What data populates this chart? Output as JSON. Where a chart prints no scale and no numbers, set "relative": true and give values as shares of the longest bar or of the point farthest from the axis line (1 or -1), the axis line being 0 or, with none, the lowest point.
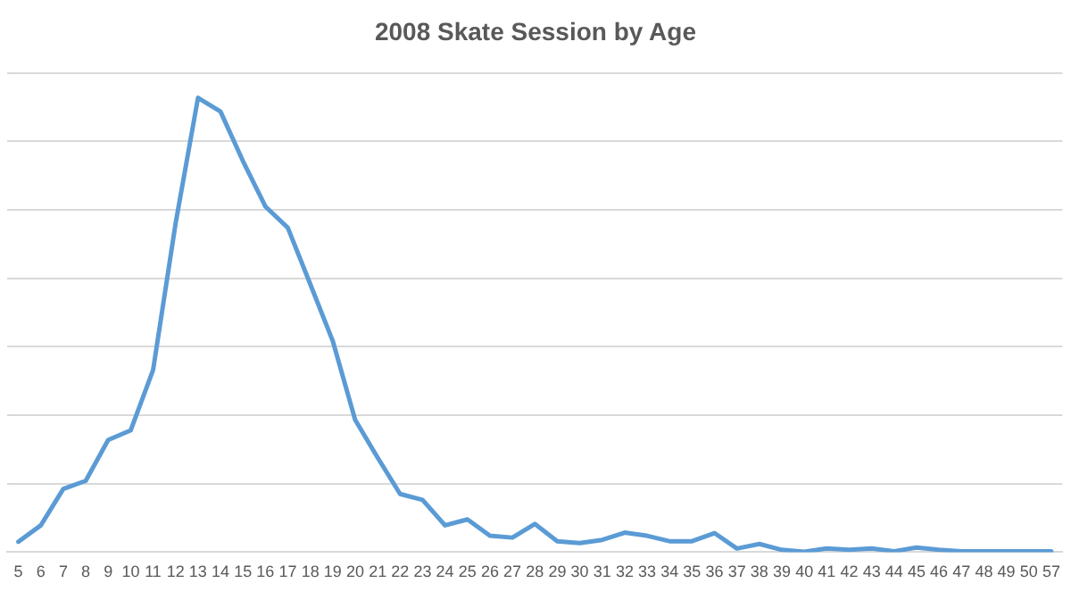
{
  "chart_data": {
    "type": "line",
    "title": "2008 Skate Session by Age",
    "relative": true,
    "grid": "y",
    "legend": false,
    "marker": "none",
    "line_style": "solid",
    "categories": [
      "5",
      "6",
      "7",
      "8",
      "9",
      "10",
      "11",
      "12",
      "13",
      "14",
      "15",
      "16",
      "17",
      "18",
      "19",
      "20",
      "21",
      "22",
      "23",
      "24",
      "25",
      "26",
      "27",
      "28",
      "29",
      "30",
      "31",
      "32",
      "33",
      "34",
      "35",
      "36",
      "37",
      "38",
      "39",
      "40",
      "41",
      "42",
      "43",
      "44",
      "45",
      "46",
      "47",
      "48",
      "49",
      "50",
      "57"
    ],
    "series": [
      {
        "color": "#5b9bd5",
        "values": [
          0.023,
          0.059,
          0.139,
          0.157,
          0.247,
          0.268,
          0.401,
          0.723,
          1,
          0.97,
          0.861,
          0.761,
          0.714,
          0.59,
          0.465,
          0.291,
          0.208,
          0.128,
          0.115,
          0.059,
          0.072,
          0.036,
          0.032,
          0.062,
          0.024,
          0.02,
          0.027,
          0.043,
          0.036,
          0.024,
          0.024,
          0.042,
          0.008,
          0.018,
          0.005,
          0.001,
          0.008,
          0.005,
          0.008,
          0.002,
          0.01,
          0.005,
          0.002,
          0.002,
          0.002,
          0.002,
          0.002
        ]
      }
    ]
  }
}
